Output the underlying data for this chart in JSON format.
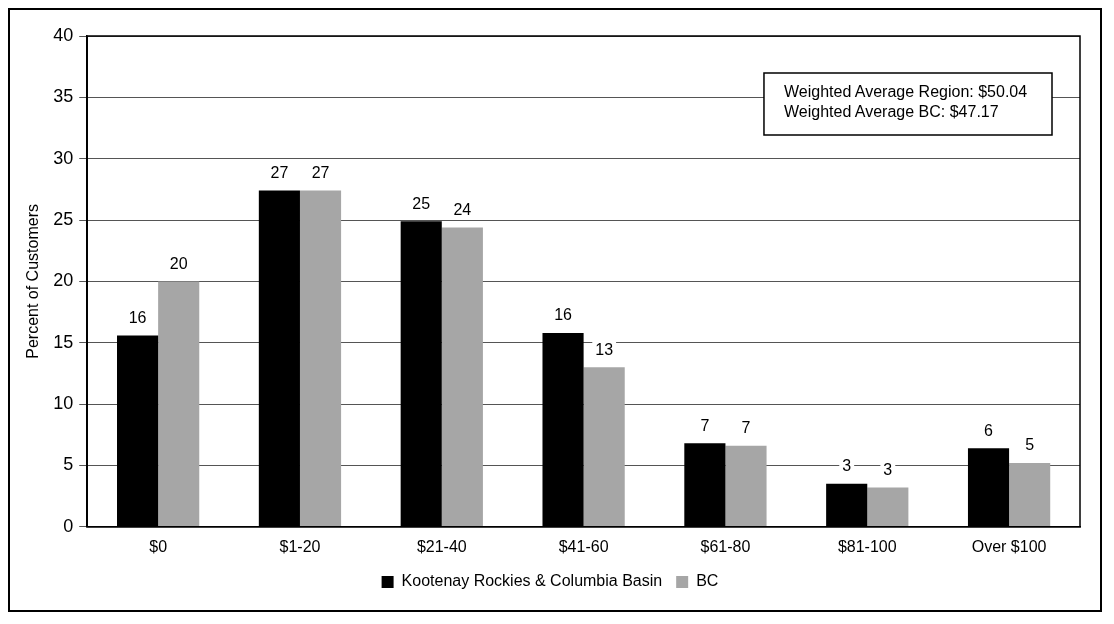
{
  "chart_data": {
    "type": "bar",
    "ylabel": "Percent of Customers",
    "categories": [
      "$0",
      "$1-20",
      "$21-40",
      "$41-60",
      "$61-80",
      "$81-100",
      "Over $100"
    ],
    "series": [
      {
        "name": "Kootenay Rockies & Columbia Basin",
        "color": "#000000",
        "values": [
          15.6,
          27.4,
          24.9,
          15.8,
          6.8,
          3.5,
          6.4
        ],
        "value_labels": [
          "16",
          "27",
          "25",
          "16",
          "7",
          "3",
          "6"
        ]
      },
      {
        "name": "BC",
        "color": "#a6a6a6",
        "values": [
          20.0,
          27.4,
          24.4,
          13.0,
          6.6,
          3.2,
          5.2
        ],
        "value_labels": [
          "20",
          "27",
          "24",
          "13",
          "7",
          "3",
          "5"
        ]
      }
    ],
    "ylim": [
      0,
      40
    ],
    "yticks": [
      0,
      5,
      10,
      15,
      20,
      25,
      30,
      35,
      40
    ],
    "grid": "y",
    "legend": "bottom",
    "annotations": [
      "Weighted Average Region: $50.04",
      "Weighted Average BC: $47.17"
    ]
  }
}
